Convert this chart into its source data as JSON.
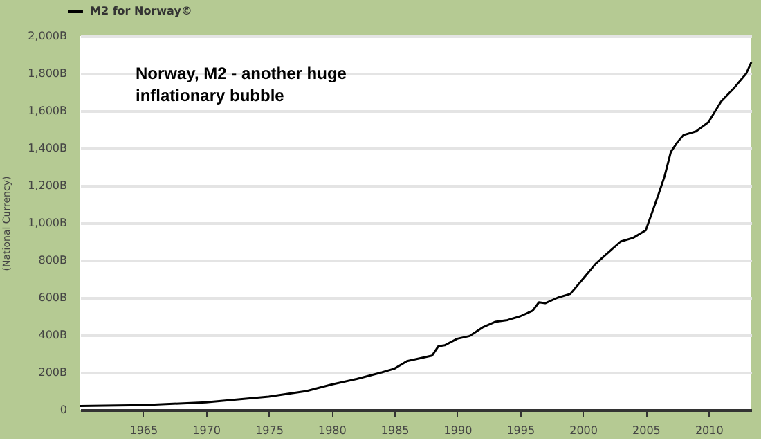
{
  "chart_data": {
    "type": "line",
    "ylabel": "(National Currency)",
    "legend": "top left",
    "grid": "y",
    "marker": "none",
    "line_style": "solid",
    "annotations": [
      "Norway, M2 - another huge\ninflationary bubble"
    ],
    "xlim": [
      1960,
      2013.4
    ],
    "xticks": [
      1965,
      1970,
      1975,
      1980,
      1985,
      1990,
      1995,
      2000,
      2005,
      2010
    ],
    "ylim": [
      0,
      2000
    ],
    "yticks": [
      0,
      {
        "value": 200,
        "label": "200B"
      },
      {
        "value": 400,
        "label": "400B"
      },
      {
        "value": 600,
        "label": "600B"
      },
      {
        "value": 800,
        "label": "800B"
      },
      {
        "value": 1000,
        "label": "1,000B"
      },
      {
        "value": 1200,
        "label": "1,200B"
      },
      {
        "value": 1400,
        "label": "1,400B"
      },
      {
        "value": 1600,
        "label": "1,600B"
      },
      {
        "value": 1800,
        "label": "1,800B"
      },
      {
        "value": 2000,
        "label": "2,000B"
      }
    ],
    "series": [
      {
        "name": "M2 for Norway©",
        "color": "#000000",
        "x": [
          1960,
          1965,
          1970,
          1975,
          1978,
          1980,
          1982,
          1984,
          1985,
          1986,
          1987,
          1988,
          1988.5,
          1989,
          1990,
          1991,
          1992,
          1993,
          1994,
          1995,
          1996,
          1996.5,
          1997,
          1998,
          1999,
          2000,
          2001,
          2002,
          2003,
          2004,
          2005,
          2006,
          2006.5,
          2007,
          2007.5,
          2008,
          2009,
          2010,
          2011,
          2012,
          2013,
          2013.4
        ],
        "values": [
          20,
          25,
          40,
          70,
          100,
          135,
          165,
          200,
          220,
          260,
          275,
          290,
          340,
          345,
          380,
          395,
          440,
          470,
          480,
          500,
          530,
          575,
          570,
          600,
          620,
          700,
          780,
          840,
          900,
          920,
          960,
          1150,
          1250,
          1380,
          1430,
          1470,
          1490,
          1540,
          1650,
          1720,
          1800,
          1860
        ]
      }
    ]
  }
}
